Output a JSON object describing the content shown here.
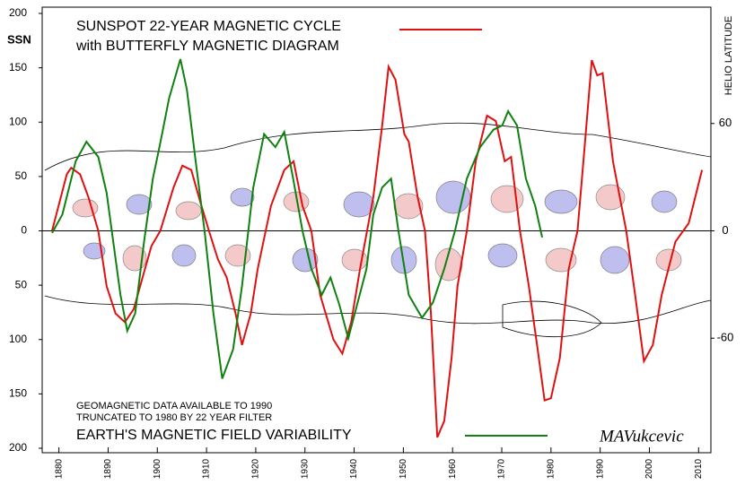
{
  "chart_data": {
    "type": "line",
    "title": "SUNSPOT 22-YEAR MAGNETIC CYCLE",
    "subtitle": "with BUTTERFLY MAGNETIC DIAGRAM",
    "y_label": "SSN",
    "y2_label": "HELIO LATITUDE",
    "annotations": [
      "GEOMAGNETIC DATA AVAILABLE TO 1990",
      "TRUNCATED TO 1980 BY 22 YEAR FILTER",
      "MAVukcevic"
    ],
    "xlim": [
      1876.6,
      2012.5
    ],
    "xticks": [
      1880,
      1890,
      1900,
      1910,
      1920,
      1930,
      1940,
      1950,
      1960,
      1970,
      1980,
      1990,
      2000,
      2010
    ],
    "ylim": [
      -200,
      200
    ],
    "yticks": [
      {
        "value": -200,
        "label": "200"
      },
      {
        "value": -150,
        "label": "150"
      },
      {
        "value": -100,
        "label": "100"
      },
      {
        "value": -50,
        "label": "50"
      },
      0,
      50,
      100,
      150,
      200
    ],
    "y2lim": [
      -121.5,
      121.5
    ],
    "y2ticks": [
      -60,
      0,
      60
    ],
    "series": [
      {
        "name": "SUNSPOT 22-YEAR MAGNETIC CYCLE",
        "color": "#e01010",
        "x": [
          1878.6,
          1881.6,
          1882.5,
          1884.3,
          1886,
          1888,
          1889.7,
          1891.5,
          1893.4,
          1895.2,
          1897,
          1898.8,
          1900.6,
          1903.3,
          1905.1,
          1906.9,
          1908.7,
          1910.5,
          1912.3,
          1914.1,
          1915.9,
          1917.2,
          1919,
          1920.4,
          1923.1,
          1925.8,
          1927.7,
          1929.5,
          1931.3,
          1933.1,
          1935.8,
          1937.6,
          1939.4,
          1941.2,
          1943.9,
          1945.7,
          1947,
          1948.4,
          1950.2,
          1951.1,
          1952.9,
          1954.4,
          1955.6,
          1956.9,
          1958.3,
          1959.8,
          1961,
          1962.9,
          1964.7,
          1967,
          1968.8,
          1970.6,
          1971.9,
          1973.7,
          1975.5,
          1977.3,
          1978.7,
          1980,
          1981.8,
          1983.6,
          1985.4,
          1986.9,
          1988.3,
          1989.4,
          1990.5,
          1992.6,
          1995.3,
          1997.1,
          1998.9,
          2000.7,
          2002.5,
          2005.3,
          2008,
          2010.7
        ],
        "values": [
          0,
          52,
          58,
          52,
          31,
          0,
          -51,
          -76,
          -84,
          -72,
          -43,
          -14,
          0,
          40,
          60,
          56,
          27,
          0,
          -26,
          -43,
          -76,
          -105,
          -76,
          -35,
          23,
          56,
          64,
          23,
          0,
          -59,
          -100,
          -113,
          -84,
          -35,
          31,
          97,
          151,
          139,
          89,
          82,
          31,
          0,
          -76,
          -190,
          -175,
          -117,
          -51,
          0,
          64,
          106,
          101,
          64,
          68,
          0,
          -51,
          -109,
          -156,
          -154,
          -117,
          -35,
          0,
          81,
          157,
          143,
          145,
          64,
          0,
          -59,
          -120,
          -105,
          -59,
          -10,
          7,
          56
        ]
      },
      {
        "name": "EARTH'S MAGNETIC FIELD VARIABILITY",
        "color": "#108010",
        "x": [
          1878.6,
          1880.7,
          1883.4,
          1885.6,
          1888,
          1889.7,
          1892.5,
          1893.9,
          1895.5,
          1897.3,
          1899.1,
          1900.6,
          1902.4,
          1904.7,
          1906,
          1907.8,
          1909.6,
          1911.4,
          1913.2,
          1915.4,
          1917.2,
          1919.5,
          1921.7,
          1924,
          1925.8,
          1927.6,
          1929.5,
          1931.3,
          1933.4,
          1935.2,
          1937,
          1938.8,
          1940.6,
          1942.5,
          1943.9,
          1945.7,
          1947.5,
          1949,
          1951.1,
          1953.8,
          1956,
          1958.3,
          1960.5,
          1962.9,
          1965.6,
          1968.3,
          1970.1,
          1971.3,
          1973.1,
          1974.9,
          1976.8,
          1978.2
        ],
        "values": [
          -2,
          15,
          64,
          82,
          68,
          35,
          -59,
          -92,
          -76,
          -10,
          48,
          81,
          122,
          158,
          130,
          64,
          0,
          -76,
          -136,
          -109,
          -51,
          40,
          89,
          77,
          91,
          48,
          0,
          -35,
          -59,
          -43,
          -68,
          -99,
          -68,
          -35,
          15,
          40,
          48,
          0,
          -59,
          -80,
          -66,
          -35,
          0,
          48,
          77,
          93,
          97,
          110,
          97,
          48,
          23,
          -6
        ]
      }
    ]
  }
}
